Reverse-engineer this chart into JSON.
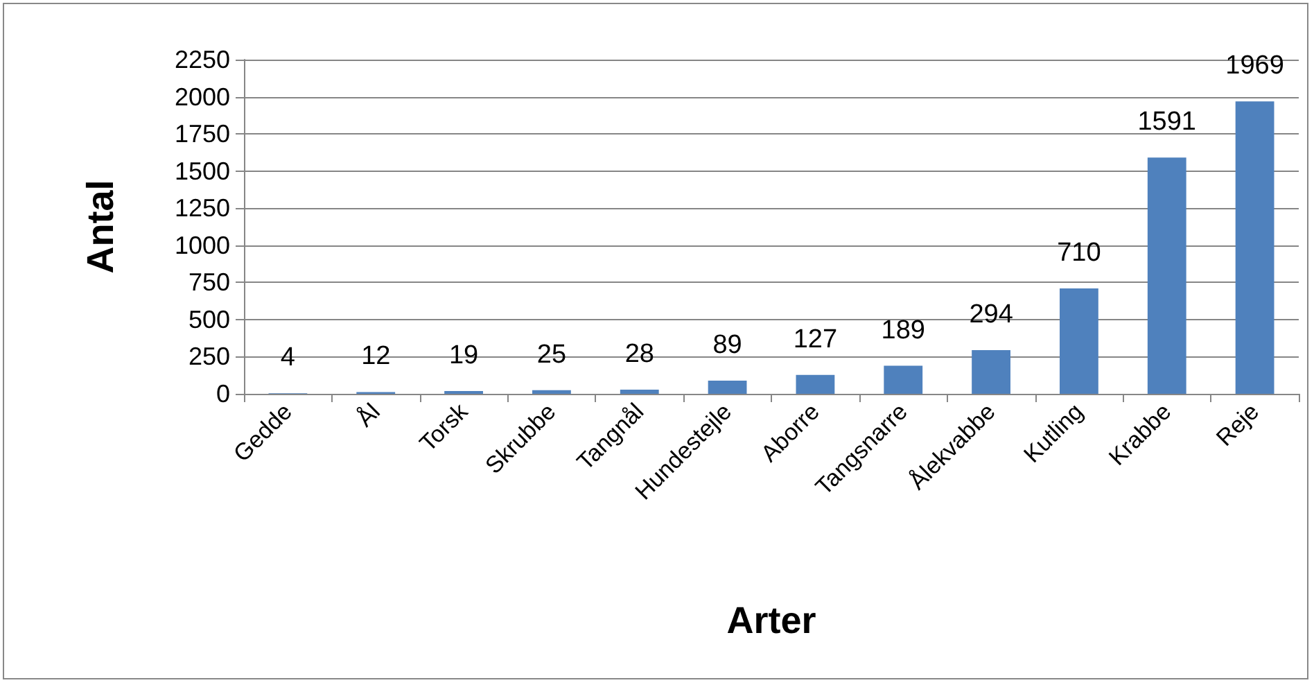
{
  "chart_data": {
    "type": "bar",
    "xlabel": "Arter",
    "ylabel": "Antal",
    "categories": [
      "Gedde",
      "Ål",
      "Torsk",
      "Skrubbe",
      "Tangnål",
      "Hundestejle",
      "Aborre",
      "Tangsnarre",
      "Ålekvabbe",
      "Kutling",
      "Krabbe",
      "Reje"
    ],
    "values": [
      4,
      12,
      19,
      25,
      28,
      89,
      127,
      189,
      294,
      710,
      1591,
      1969
    ],
    "color": "#4f81bd",
    "ylim": [
      0,
      2250
    ],
    "yticks": [
      0,
      250,
      500,
      750,
      1000,
      1250,
      1500,
      1750,
      2000,
      2250
    ],
    "grid": "y",
    "data_labels": true
  }
}
